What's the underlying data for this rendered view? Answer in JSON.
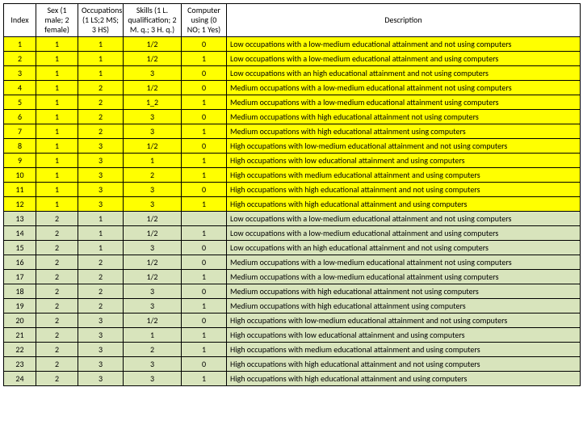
{
  "headers": {
    "index": "Index",
    "sex": "Sex (1 male; 2 female)",
    "occ": "Occupations (1 LS;2 MS; 3 HS)",
    "skills": "Skills (1 L. qualification; 2 M. q.; 3 H. q.)",
    "comp": "Computer using (0 NO; 1 Yes)",
    "desc": "Description"
  },
  "rows": [
    {
      "index": "1",
      "sex": "1",
      "occ": "1",
      "skills": "1/2",
      "comp": "0",
      "desc": "Low occupations with a low-medium educational attainment and not using computers",
      "color": "yellow",
      "just": true
    },
    {
      "index": "2",
      "sex": "1",
      "occ": "1",
      "skills": "1/2",
      "comp": "1",
      "desc": "Low occupations with a low-medium educational attainment and using computers",
      "color": "yellow",
      "just": false
    },
    {
      "index": "3",
      "sex": "1",
      "occ": "1",
      "skills": "3",
      "comp": "0",
      "desc": "Low occupations with an high educational attainment and not using computers",
      "color": "yellow",
      "just": false
    },
    {
      "index": "4",
      "sex": "1",
      "occ": "2",
      "skills": "1/2",
      "comp": "0",
      "desc": "Medium occupations with a low-medium educational attainment not using computers",
      "color": "yellow",
      "just": true
    },
    {
      "index": "5",
      "sex": "1",
      "occ": "2",
      "skills": "1_2",
      "comp": "1",
      "desc": "Medium occupations with a low-medium educational attainment using computers",
      "color": "yellow",
      "just": false
    },
    {
      "index": "6",
      "sex": "1",
      "occ": "2",
      "skills": "3",
      "comp": "0",
      "desc": "Medium occupations with high educational attainment not using computers",
      "color": "yellow",
      "just": false
    },
    {
      "index": "7",
      "sex": "1",
      "occ": "2",
      "skills": "3",
      "comp": "1",
      "desc": "Medium occupations with high educational attainment using computers",
      "color": "yellow",
      "just": false
    },
    {
      "index": "8",
      "sex": "1",
      "occ": "3",
      "skills": "1/2",
      "comp": "0",
      "desc": "High occupations with low-medium educational attainment and not using computers",
      "color": "yellow",
      "just": true
    },
    {
      "index": "9",
      "sex": "1",
      "occ": "3",
      "skills": "1",
      "comp": "1",
      "desc": "High occupations with low educational attainment and using computers",
      "color": "yellow",
      "just": false
    },
    {
      "index": "10",
      "sex": "1",
      "occ": "3",
      "skills": "2",
      "comp": "1",
      "desc": "High occupations with medium educational attainment and using computers",
      "color": "yellow",
      "just": false
    },
    {
      "index": "11",
      "sex": "1",
      "occ": "3",
      "skills": "3",
      "comp": "0",
      "desc": "High occupations with high educational attainment and not using computers",
      "color": "yellow",
      "just": false
    },
    {
      "index": "12",
      "sex": "1",
      "occ": "3",
      "skills": "3",
      "comp": "1",
      "desc": "High occupations with high educational attainment and using computers",
      "color": "yellow",
      "just": false
    },
    {
      "index": "13",
      "sex": "2",
      "occ": "1",
      "skills": "1/2",
      "comp": "",
      "desc": "Low occupations with a low-medium educational attainment and not using computers",
      "color": "green",
      "just": false
    },
    {
      "index": "14",
      "sex": "2",
      "occ": "1",
      "skills": "1/2",
      "comp": "1",
      "desc": "Low occupations with a low-medium educational attainment and using computers",
      "color": "green",
      "just": false
    },
    {
      "index": "15",
      "sex": "2",
      "occ": "1",
      "skills": "3",
      "comp": "0",
      "desc": "Low occupations with an high educational attainment and not using computers",
      "color": "green",
      "just": false
    },
    {
      "index": "16",
      "sex": "2",
      "occ": "2",
      "skills": "1/2",
      "comp": "0",
      "desc": "Medium occupations with a low-medium educational attainment not using computers",
      "color": "green",
      "just": false
    },
    {
      "index": "17",
      "sex": "2",
      "occ": "2",
      "skills": "1/2",
      "comp": "1",
      "desc": "Medium occupations with a low-medium educational attainment using computers",
      "color": "green",
      "just": false
    },
    {
      "index": "18",
      "sex": "2",
      "occ": "2",
      "skills": "3",
      "comp": "0",
      "desc": "Medium occupations with high educational attainment not using computers",
      "color": "green",
      "just": false
    },
    {
      "index": "19",
      "sex": "2",
      "occ": "2",
      "skills": "3",
      "comp": "1",
      "desc": "Medium occupations with high educational attainment using computers",
      "color": "green",
      "just": false
    },
    {
      "index": "20",
      "sex": "2",
      "occ": "3",
      "skills": "1/2",
      "comp": "0",
      "desc": "High occupations with low-medium educational attainment and not using computers",
      "color": "green",
      "just": false
    },
    {
      "index": "21",
      "sex": "2",
      "occ": "3",
      "skills": "1",
      "comp": "1",
      "desc": "High occupations with low educational attainment and using computers",
      "color": "green",
      "just": false
    },
    {
      "index": "22",
      "sex": "2",
      "occ": "3",
      "skills": "2",
      "comp": "1",
      "desc": "High occupations with medium educational attainment and using computers",
      "color": "green",
      "just": false
    },
    {
      "index": "23",
      "sex": "2",
      "occ": "3",
      "skills": "3",
      "comp": "0",
      "desc": "High occupations with high educational attainment and not using computers",
      "color": "green",
      "just": false
    },
    {
      "index": "24",
      "sex": "2",
      "occ": "3",
      "skills": "3",
      "comp": "1",
      "desc": "High occupations with high educational attainment and using computers",
      "color": "green",
      "just": false
    }
  ]
}
